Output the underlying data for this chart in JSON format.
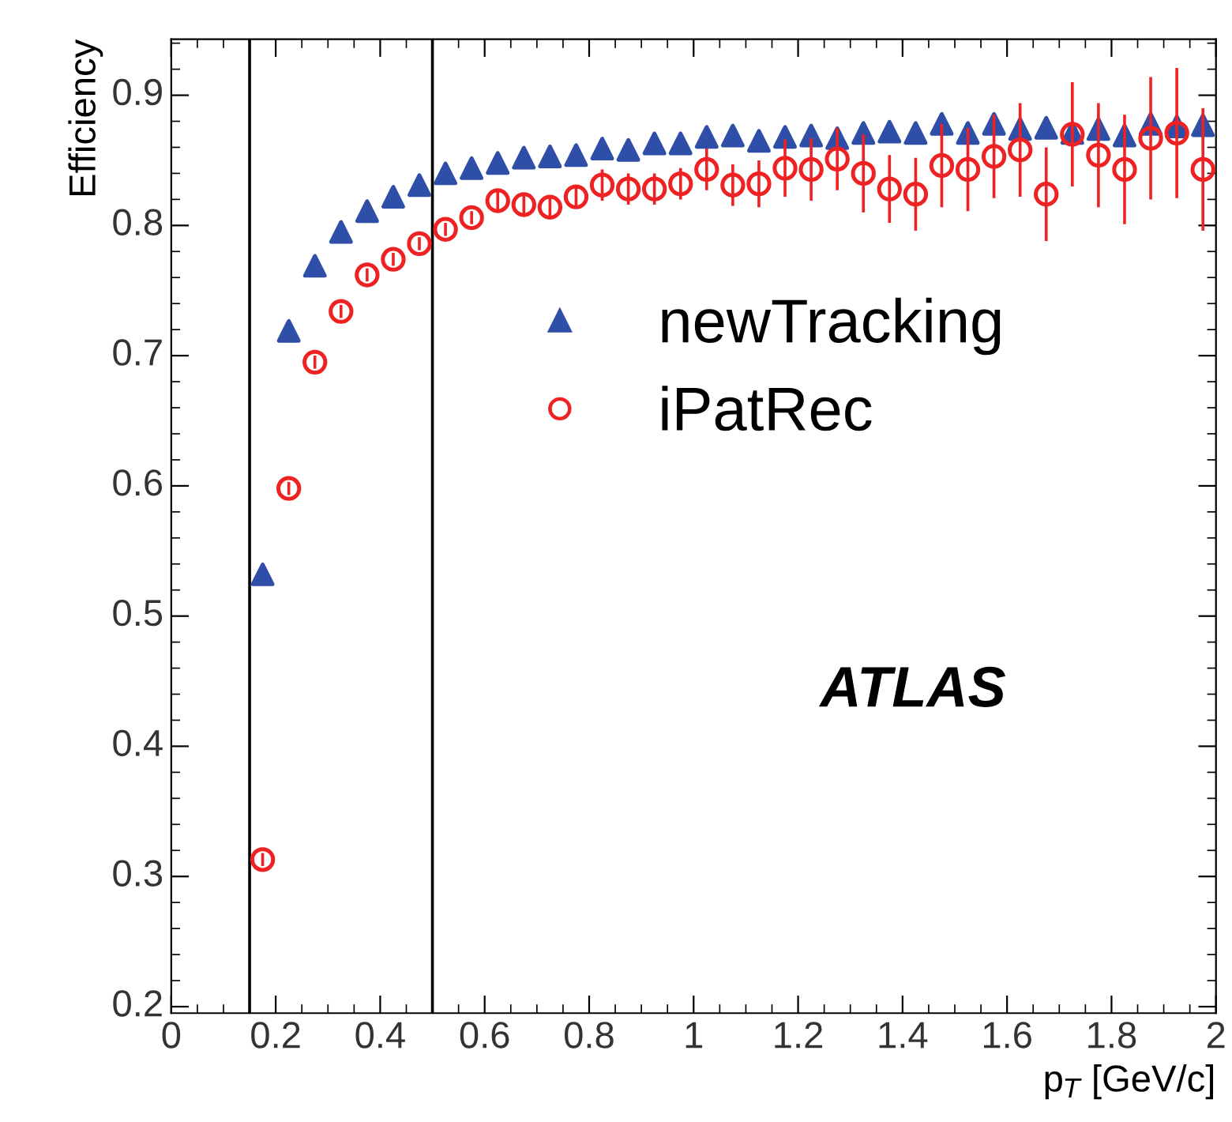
{
  "chart_data": {
    "type": "scatter",
    "xlabel": "p$_{T}$ [GeV/c]",
    "ylabel": "Efficiency",
    "xlim": [
      0,
      2
    ],
    "ylim": [
      0.195,
      0.943
    ],
    "xticks": [
      0,
      0.2,
      0.4,
      0.6,
      0.8,
      1,
      1.2,
      1.4,
      1.6,
      1.8,
      2
    ],
    "yticks": [
      0.2,
      0.3,
      0.4,
      0.5,
      0.6,
      0.7,
      0.8,
      0.9
    ],
    "x": [
      0.175,
      0.225,
      0.275,
      0.325,
      0.375,
      0.425,
      0.475,
      0.525,
      0.575,
      0.625,
      0.675,
      0.725,
      0.775,
      0.825,
      0.875,
      0.925,
      0.975,
      1.025,
      1.075,
      1.125,
      1.175,
      1.225,
      1.275,
      1.325,
      1.375,
      1.425,
      1.475,
      1.525,
      1.575,
      1.625,
      1.675,
      1.725,
      1.775,
      1.825,
      1.875,
      1.925,
      1.975
    ],
    "series": [
      {
        "name": "newTracking",
        "color": "#2f4ea8",
        "marker": "triangle",
        "values": [
          0.532,
          0.719,
          0.769,
          0.795,
          0.811,
          0.822,
          0.831,
          0.84,
          0.844,
          0.848,
          0.852,
          0.853,
          0.854,
          0.859,
          0.858,
          0.863,
          0.863,
          0.868,
          0.869,
          0.865,
          0.868,
          0.869,
          0.867,
          0.871,
          0.872,
          0.871,
          0.878,
          0.871,
          0.878,
          0.874,
          0.875,
          0.871,
          0.874,
          0.869,
          0.878,
          0.876,
          0.877
        ]
      },
      {
        "name": "iPatRec",
        "color": "#ee2222",
        "marker": "circle",
        "values": [
          0.313,
          0.598,
          0.695,
          0.734,
          0.762,
          0.774,
          0.786,
          0.797,
          0.806,
          0.819,
          0.816,
          0.814,
          0.822,
          0.831,
          0.828,
          0.828,
          0.832,
          0.843,
          0.831,
          0.832,
          0.844,
          0.843,
          0.851,
          0.84,
          0.828,
          0.824,
          0.846,
          0.843,
          0.853,
          0.858,
          0.824,
          0.87,
          0.854,
          0.843,
          0.867,
          0.871,
          0.843
        ],
        "errors": [
          0.005,
          0.005,
          0.005,
          0.005,
          0.005,
          0.005,
          0.005,
          0.005,
          0.005,
          0.008,
          0.008,
          0.008,
          0.008,
          0.012,
          0.012,
          0.012,
          0.012,
          0.016,
          0.016,
          0.018,
          0.022,
          0.024,
          0.024,
          0.03,
          0.026,
          0.028,
          0.032,
          0.032,
          0.032,
          0.036,
          0.036,
          0.04,
          0.04,
          0.042,
          0.047,
          0.05,
          0.047
        ]
      }
    ],
    "ref_lines": [
      {
        "axis": "x",
        "value": 0.15,
        "color": "#000000"
      },
      {
        "axis": "x",
        "value": 0.5,
        "color": "#000000"
      }
    ],
    "annotations": [
      "ATLAS"
    ],
    "legend": "center right",
    "grid": false
  }
}
